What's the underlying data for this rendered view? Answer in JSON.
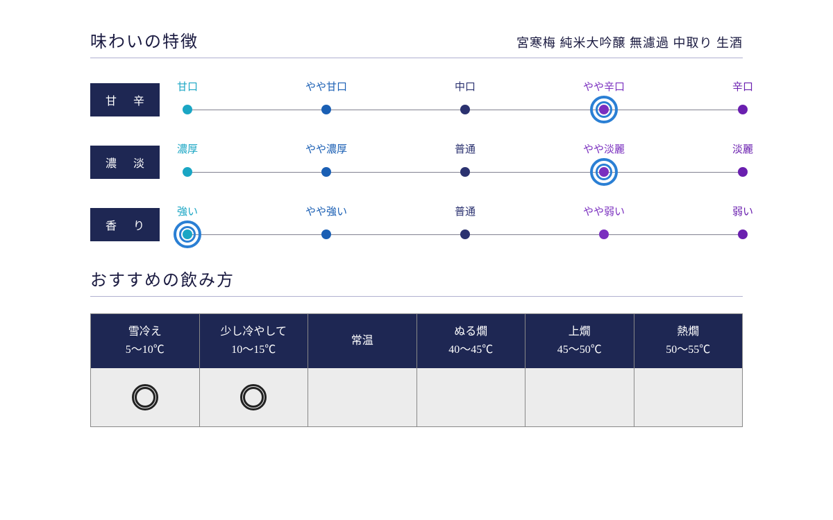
{
  "title": "味わいの特徴",
  "subtitle": "宮寒梅 純米大吟醸 無濾過 中取り 生酒",
  "colors": {
    "tag_bg": "#1e2753",
    "line": "#808090",
    "ring": "#2a7fd4",
    "stop_colors": [
      "#1aa6c4",
      "#1a5fb4",
      "#2b3270",
      "#7a2fbf",
      "#6a1faf"
    ]
  },
  "scales": [
    {
      "tag": "甘 辛",
      "stops": [
        "甘口",
        "やや甘口",
        "中口",
        "やや辛口",
        "辛口"
      ],
      "selected_index": 3
    },
    {
      "tag": "濃 淡",
      "stops": [
        "濃厚",
        "やや濃厚",
        "普通",
        "やや淡麗",
        "淡麗"
      ],
      "selected_index": 3
    },
    {
      "tag": "香 り",
      "stops": [
        "強い",
        "やや強い",
        "普通",
        "やや弱い",
        "弱い"
      ],
      "selected_index": 0
    }
  ],
  "serving_title": "おすすめの飲み方",
  "serving": [
    {
      "name": "雪冷え",
      "range": "5～10℃",
      "rec": true
    },
    {
      "name": "少し冷やして",
      "range": "10～15℃",
      "rec": true
    },
    {
      "name": "常温",
      "range": "",
      "rec": false
    },
    {
      "name": "ぬる燗",
      "range": "40～45℃",
      "rec": false
    },
    {
      "name": "上燗",
      "range": "45～50℃",
      "rec": false
    },
    {
      "name": "熱燗",
      "range": "50～55℃",
      "rec": false
    }
  ]
}
